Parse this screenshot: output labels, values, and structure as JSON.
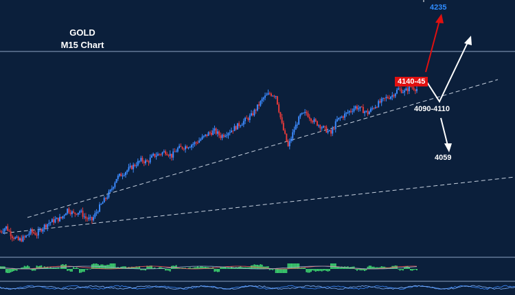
{
  "chart_data": {
    "type": "candlestick",
    "title": "GOLD",
    "subtitle": "M15 Chart",
    "annotations": {
      "target_up": "4235",
      "resistance_zone": "4140-45",
      "support_zone": "4090-4110",
      "target_down": "4059"
    },
    "estimated_price_path": [
      3985,
      3990,
      3980,
      3975,
      3978,
      3985,
      3982,
      3990,
      3995,
      3998,
      4000,
      4010,
      4005,
      4008,
      4000,
      3998,
      4010,
      4020,
      4030,
      4045,
      4050,
      4055,
      4060,
      4065,
      4063,
      4070,
      4072,
      4075,
      4070,
      4078,
      4080,
      4082,
      4085,
      4090,
      4095,
      4098,
      4092,
      4096,
      4100,
      4105,
      4110,
      4115,
      4125,
      4135,
      4140,
      4138,
      4105,
      4080,
      4100,
      4115,
      4118,
      4110,
      4105,
      4100,
      4095,
      4110,
      4115,
      4120,
      4125,
      4122,
      4118,
      4125,
      4130,
      4135,
      4138,
      4145,
      4142,
      4148,
      4145
    ],
    "ylim": [
      3960,
      4245
    ],
    "colors": {
      "background": "#0b1f3b",
      "bull": "#3d8bff",
      "bear": "#e23a3a",
      "histogram": "#3ccf6e",
      "label_red": "#e01010",
      "label_blue": "#2f8cff"
    }
  }
}
